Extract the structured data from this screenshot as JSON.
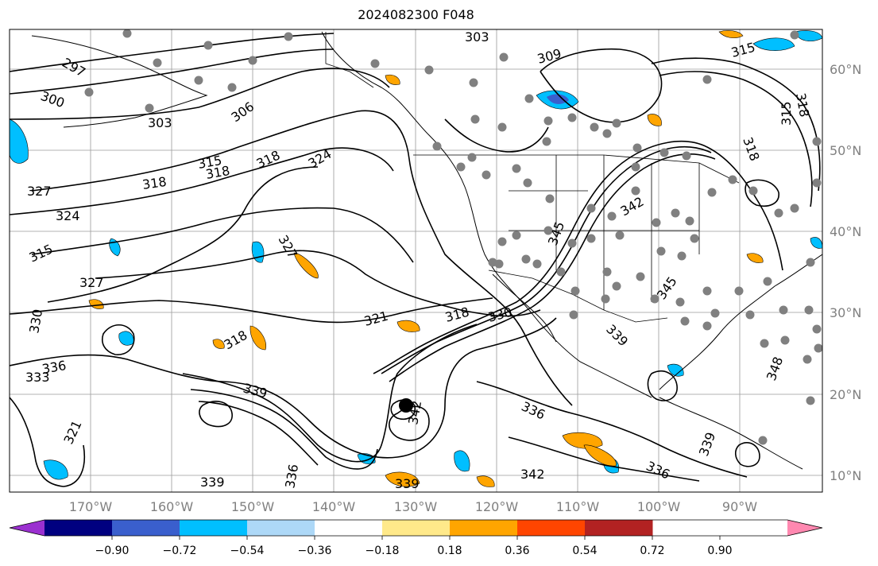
{
  "title": "2024082300 F048",
  "lat_labels": [
    "60°N",
    "50°N",
    "40°N",
    "30°N",
    "20°N",
    "10°N"
  ],
  "lon_labels": [
    "170°W",
    "160°W",
    "150°W",
    "140°W",
    "130°W",
    "120°W",
    "110°W",
    "100°W",
    "90°W"
  ],
  "colorbar": {
    "labels": [
      "−0.90",
      "−0.72",
      "−0.54",
      "−0.36",
      "−0.18",
      "0.18",
      "0.36",
      "0.54",
      "0.72",
      "0.90"
    ],
    "colors": [
      "#9b30d0",
      "#000080",
      "#3a5fcd",
      "#00bfff",
      "#add8f7",
      "#ffffff",
      "#ffe98a",
      "#ffa500",
      "#ff4500",
      "#b22222",
      "#ff88b0"
    ]
  },
  "contour_labels": [
    "297",
    "300",
    "303",
    "306",
    "309",
    "315",
    "318",
    "321",
    "324",
    "327",
    "330",
    "333",
    "336",
    "339",
    "342",
    "345",
    "348"
  ],
  "map_colors": {
    "contour": "#000000",
    "grid": "#808080",
    "station": "#808080",
    "cyclone_center": "#000000"
  }
}
